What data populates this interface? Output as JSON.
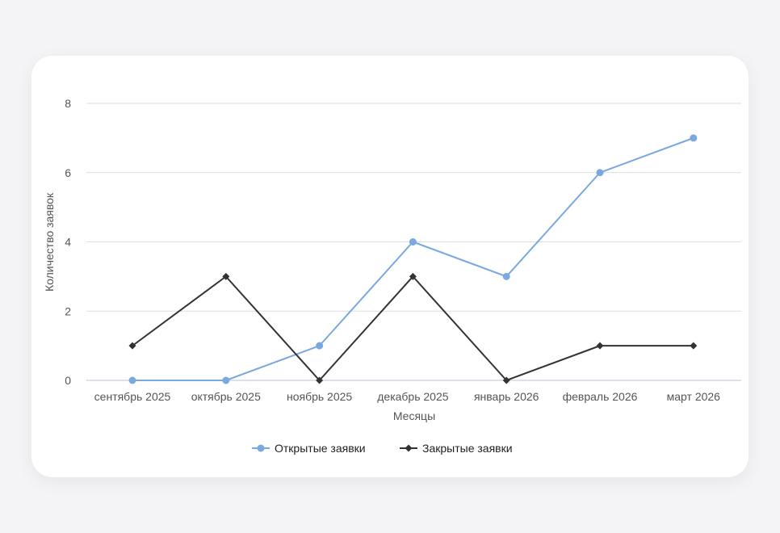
{
  "chart_data": {
    "type": "line",
    "title": "",
    "xlabel": "Месяцы",
    "ylabel": "Количество заявок",
    "categories": [
      "сентябрь 2025",
      "октябрь 2025",
      "ноябрь 2025",
      "декабрь 2025",
      "январь 2026",
      "февраль 2026",
      "март 2026"
    ],
    "ylim": [
      0,
      8
    ],
    "yticks": [
      0,
      2,
      4,
      6,
      8
    ],
    "grid": true,
    "legend_position": "bottom",
    "series": [
      {
        "name": "Открытые заявки",
        "values": [
          0,
          0,
          1,
          4,
          3,
          6,
          7
        ],
        "color": "#7aa9e0",
        "marker": "circle"
      },
      {
        "name": "Закрытые заявки",
        "values": [
          1,
          3,
          0,
          3,
          0,
          1,
          1
        ],
        "color": "#333333",
        "marker": "diamond"
      }
    ]
  }
}
